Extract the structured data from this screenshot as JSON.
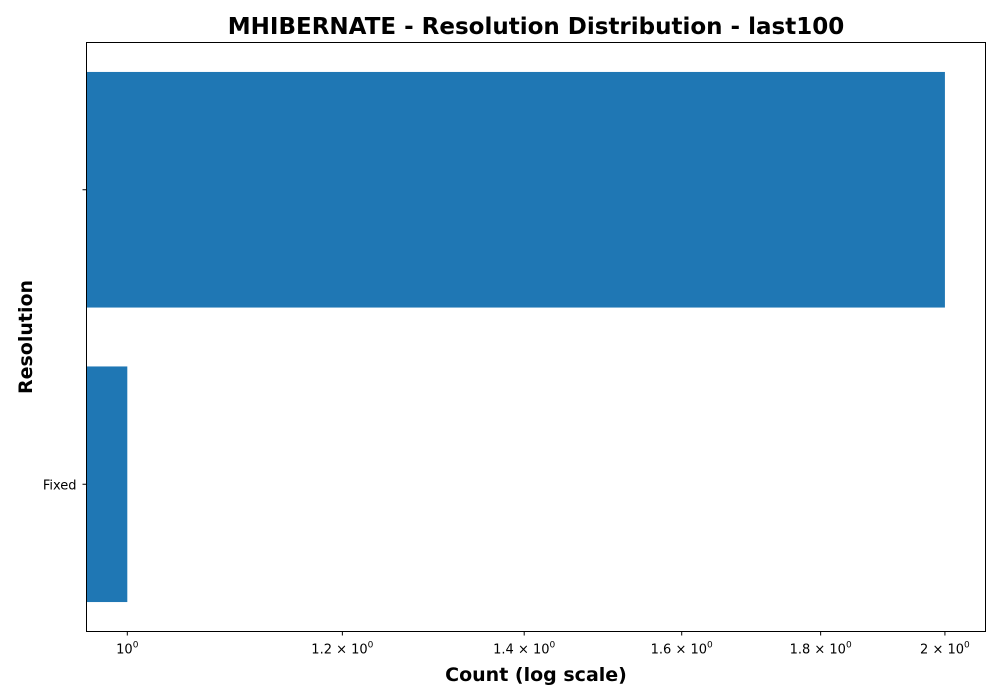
{
  "chart_data": {
    "type": "bar",
    "orientation": "horizontal",
    "title": "MHIBERNATE - Resolution Distribution - last100",
    "xlabel": "Count (log scale)",
    "ylabel": "Resolution",
    "x_scale": "log",
    "xlim": [
      0.966,
      2.07
    ],
    "grid": false,
    "categories": [
      "Fixed",
      ""
    ],
    "values": [
      1,
      2
    ],
    "x_ticks": [
      {
        "value": 1.0,
        "mantissa": "",
        "base": "10",
        "exp": "0"
      },
      {
        "value": 1.2,
        "mantissa": "1.2",
        "base": "10",
        "exp": "0"
      },
      {
        "value": 1.4,
        "mantissa": "1.4",
        "base": "10",
        "exp": "0"
      },
      {
        "value": 1.6,
        "mantissa": "1.6",
        "base": "10",
        "exp": "0"
      },
      {
        "value": 1.8,
        "mantissa": "1.8",
        "base": "10",
        "exp": "0"
      },
      {
        "value": 2.0,
        "mantissa": "2",
        "base": "10",
        "exp": "0"
      }
    ],
    "bar_color": "#1f77b4"
  }
}
